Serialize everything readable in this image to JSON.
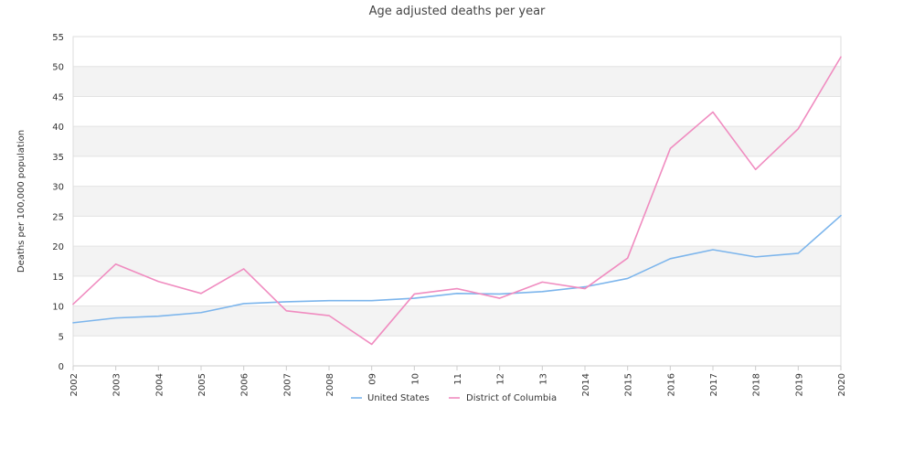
{
  "chart_data": {
    "type": "line",
    "title": "Age adjusted deaths per year",
    "xlabel": "",
    "ylabel": "Deaths per 100,000 population",
    "categories": [
      "2002",
      "2003",
      "2004",
      "2005",
      "2006",
      "2007",
      "2008",
      "09",
      "10",
      "11",
      "12",
      "13",
      "2014",
      "2015",
      "2016",
      "2017",
      "2018",
      "2019",
      "2020"
    ],
    "series": [
      {
        "name": "United States",
        "color": "#7cb5ec",
        "values": [
          7.2,
          8.0,
          8.3,
          8.9,
          10.4,
          10.7,
          10.9,
          10.9,
          11.3,
          12.1,
          12.0,
          12.4,
          13.2,
          14.6,
          17.9,
          19.4,
          18.2,
          18.8,
          25.1
        ]
      },
      {
        "name": "District of Columbia",
        "color": "#f08cc0",
        "values": [
          10.3,
          17.0,
          14.1,
          12.1,
          16.2,
          9.2,
          8.4,
          3.6,
          12.0,
          12.9,
          11.3,
          14.0,
          12.9,
          18.0,
          36.3,
          42.4,
          32.8,
          39.6,
          51.6
        ]
      }
    ],
    "ylim": [
      0,
      55
    ],
    "yticks": [
      0,
      5,
      10,
      15,
      20,
      25,
      30,
      35,
      40,
      45,
      50,
      55
    ],
    "grid": true,
    "legend_position": "bottom"
  }
}
